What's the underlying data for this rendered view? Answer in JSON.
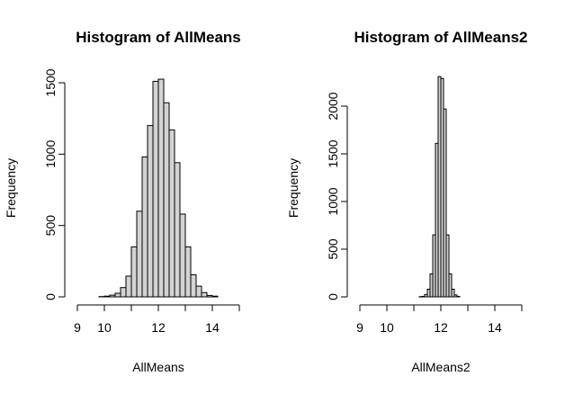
{
  "chart_data": [
    {
      "type": "bar",
      "title": "Histogram of AllMeans",
      "xlabel": "AllMeans",
      "ylabel": "Frequency",
      "xlim": [
        9,
        15
      ],
      "ylim": [
        0,
        1500
      ],
      "xticks": [
        9,
        10,
        11,
        12,
        13,
        14,
        15
      ],
      "xtick_labels": [
        "9",
        "10",
        "",
        "12",
        "",
        "14",
        ""
      ],
      "yticks": [
        0,
        500,
        1000,
        1500
      ],
      "ytick_labels": [
        "0",
        "500",
        "1000",
        "1500"
      ],
      "bin_width": 0.2,
      "bin_starts": [
        9.8,
        10.0,
        10.2,
        10.4,
        10.6,
        10.8,
        11.0,
        11.2,
        11.4,
        11.6,
        11.8,
        12.0,
        12.2,
        12.4,
        12.6,
        12.8,
        13.0,
        13.2,
        13.4,
        13.6,
        13.8,
        14.0
      ],
      "values": [
        2,
        5,
        12,
        25,
        65,
        145,
        350,
        600,
        980,
        1200,
        1510,
        1525,
        1360,
        1170,
        940,
        580,
        350,
        155,
        75,
        30,
        10,
        5
      ],
      "grid": false,
      "legend": "none"
    },
    {
      "type": "bar",
      "title": "Histogram of AllMeans2",
      "xlabel": "AllMeans2",
      "ylabel": "Frequency",
      "xlim": [
        9,
        15
      ],
      "ylim": [
        0,
        2000
      ],
      "xticks": [
        9,
        10,
        11,
        12,
        13,
        14,
        15
      ],
      "xtick_labels": [
        "9",
        "10",
        "",
        "12",
        "",
        "14",
        ""
      ],
      "yticks": [
        0,
        500,
        1000,
        1500,
        2000
      ],
      "ytick_labels": [
        "0",
        "500",
        "1000",
        "1500",
        "2000"
      ],
      "bin_width": 0.1,
      "bin_starts": [
        11.2,
        11.3,
        11.4,
        11.5,
        11.6,
        11.7,
        11.8,
        11.9,
        12.0,
        12.1,
        12.2,
        12.3,
        12.4,
        12.5,
        12.6
      ],
      "values": [
        2,
        5,
        25,
        80,
        240,
        650,
        1610,
        2310,
        2290,
        1970,
        650,
        240,
        80,
        20,
        5
      ],
      "grid": false,
      "legend": "none"
    }
  ]
}
